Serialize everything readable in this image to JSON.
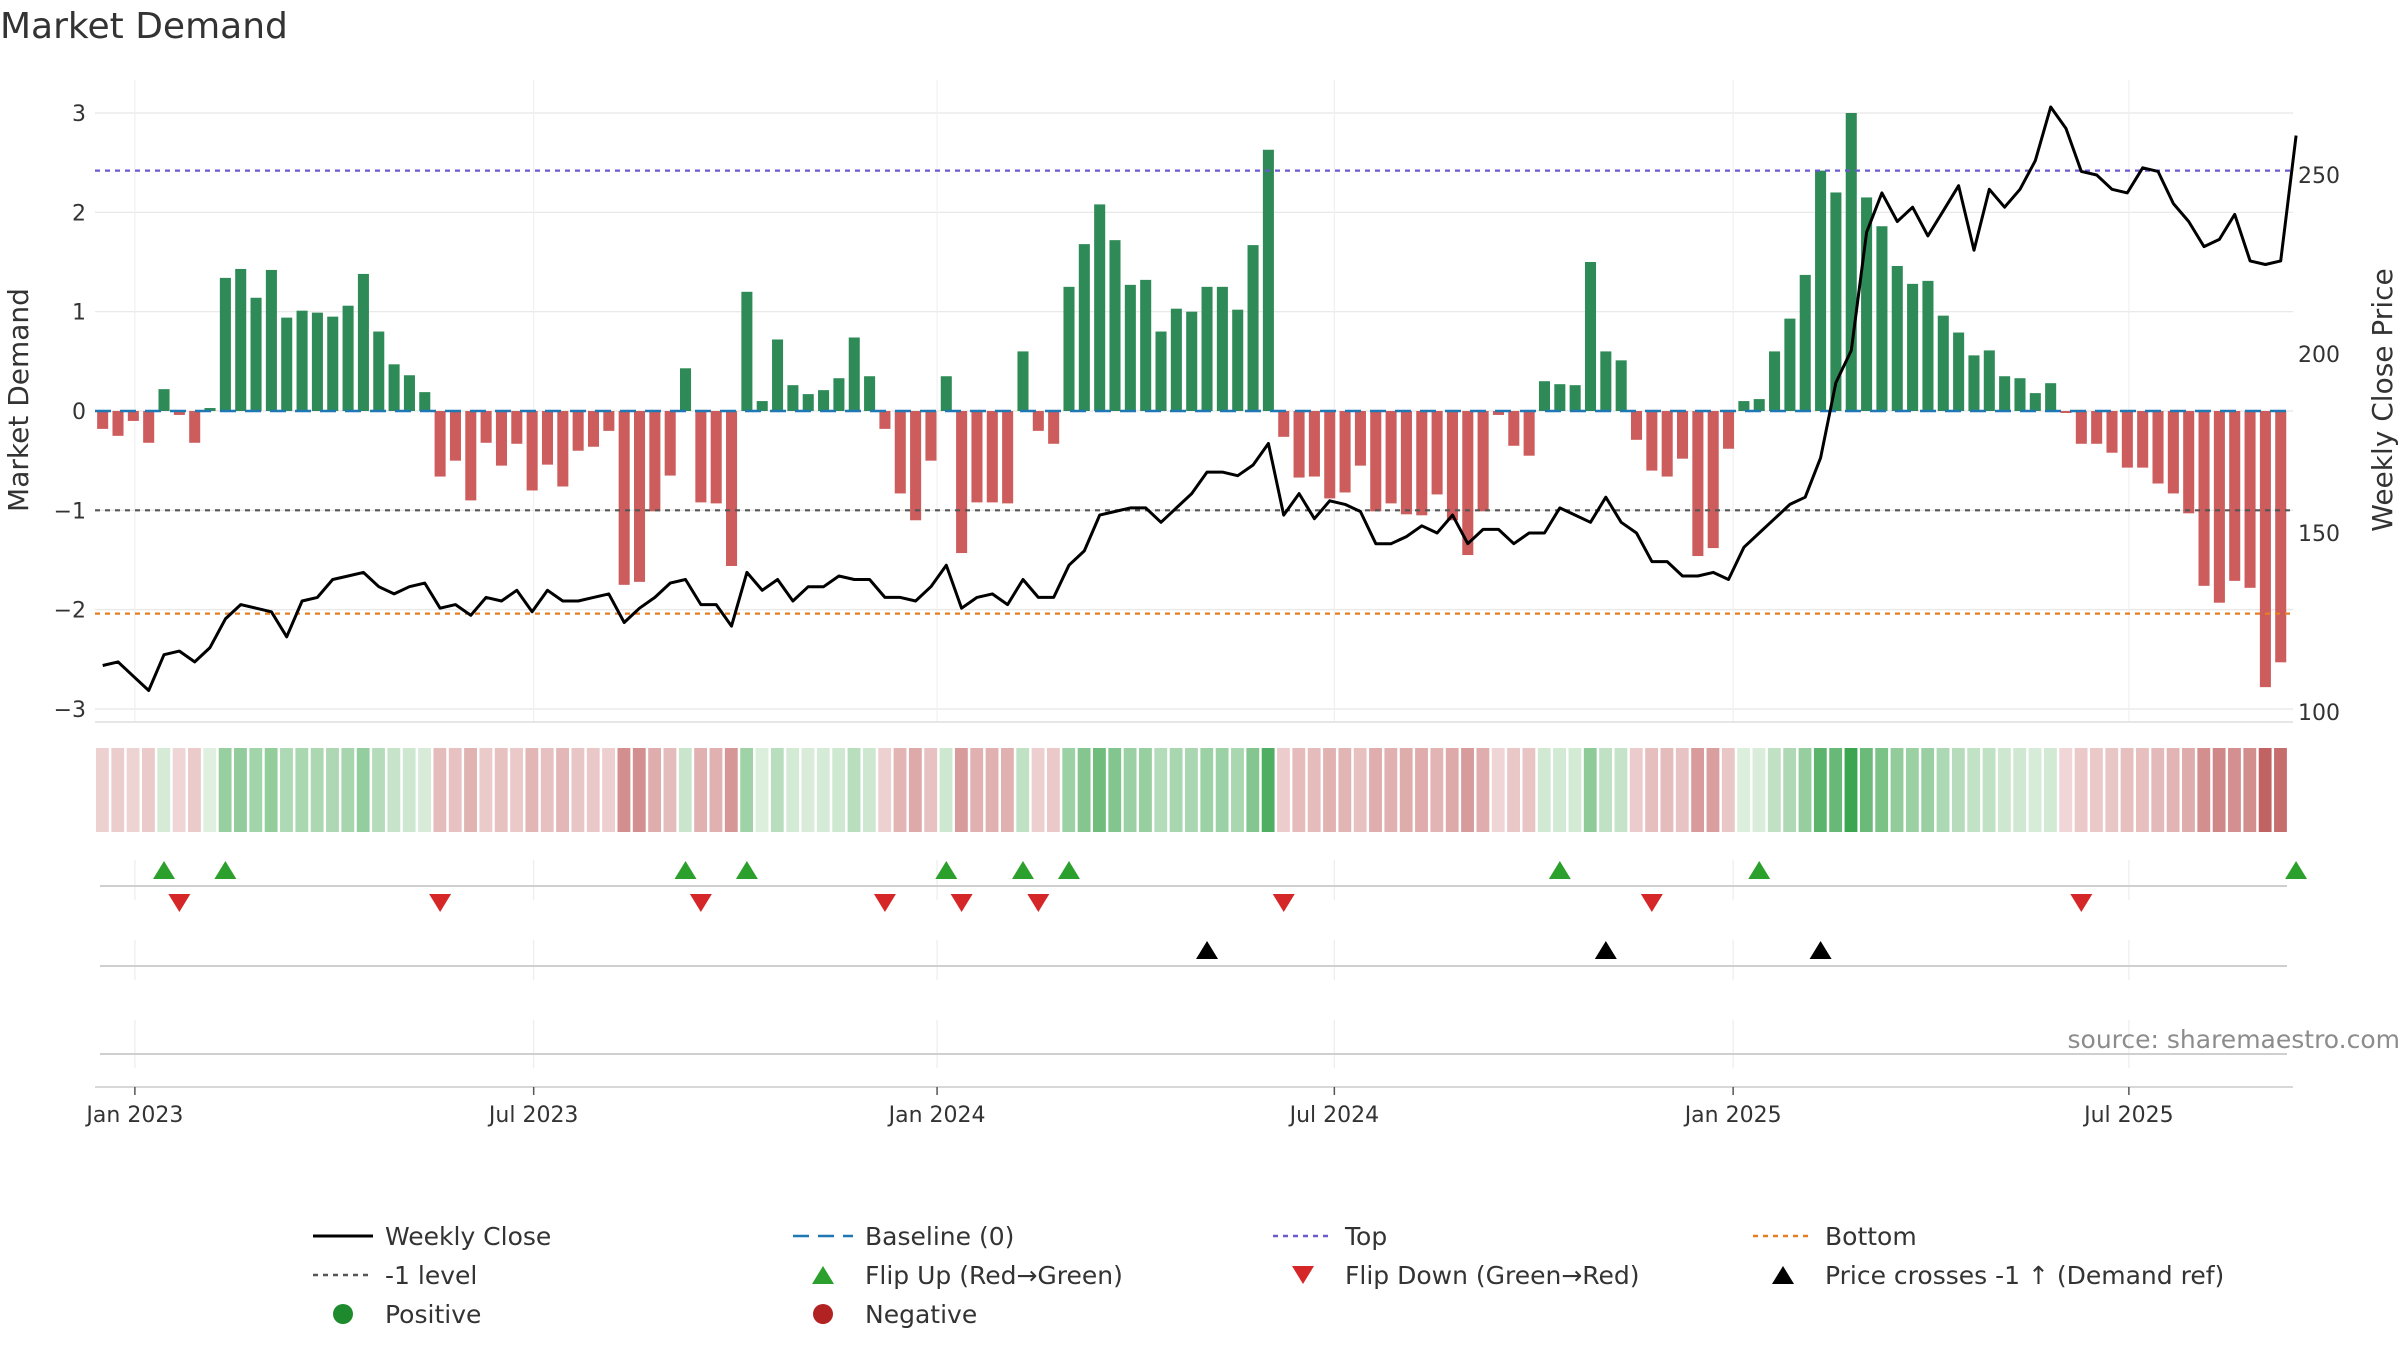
{
  "chart_data": {
    "type": "bar",
    "title": "Market Demand",
    "ylabel": "Market Demand",
    "y2label": "Weekly Close Price",
    "ylim": [
      -3.3,
      3.3
    ],
    "y2lim": [
      99.3,
      269
    ],
    "yticks": [
      3,
      2,
      1,
      0,
      -1,
      -2,
      -3
    ],
    "yticks_labels": [
      "3",
      "2",
      "1",
      "0",
      "−1",
      "−2",
      "−3"
    ],
    "y2ticks": [
      250,
      200,
      150,
      100
    ],
    "y2ticks_labels": [
      "250",
      "200",
      "150",
      "100"
    ],
    "x_domain_weeks": [
      0,
      143.3
    ],
    "x_tick_weeks": [
      2.6,
      28.6,
      54.9,
      80.8,
      106.8,
      132.6
    ],
    "x_tick_labels": [
      "Jan 2023",
      "Jul 2023",
      "Jan 2024",
      "Jul 2024",
      "Jan 2025",
      "Jul 2025"
    ],
    "reference_lines": {
      "top": 2.42,
      "bottom": -2.04,
      "minus_one": -1,
      "baseline": 0
    },
    "demand": [
      -0.18,
      -0.25,
      -0.1,
      -0.32,
      0.22,
      -0.04,
      -0.32,
      0.03,
      1.34,
      1.43,
      1.14,
      1.42,
      0.94,
      1.01,
      0.99,
      0.95,
      1.06,
      1.38,
      0.8,
      0.47,
      0.36,
      0.19,
      -0.66,
      -0.5,
      -0.9,
      -0.32,
      -0.55,
      -0.33,
      -0.8,
      -0.54,
      -0.76,
      -0.4,
      -0.36,
      -0.2,
      -1.75,
      -1.72,
      -1.01,
      -0.65,
      0.43,
      -0.92,
      -0.93,
      -1.56,
      1.2,
      0.1,
      0.72,
      0.26,
      0.17,
      0.21,
      0.33,
      0.74,
      0.35,
      -0.18,
      -0.83,
      -1.1,
      -0.5,
      0.35,
      -1.43,
      -0.92,
      -0.92,
      -0.93,
      0.6,
      -0.2,
      -0.33,
      1.25,
      1.68,
      2.08,
      1.72,
      1.27,
      1.32,
      0.8,
      1.03,
      1.0,
      1.25,
      1.25,
      1.02,
      1.67,
      2.63,
      -0.26,
      -0.67,
      -0.66,
      -0.88,
      -0.82,
      -0.55,
      -1.01,
      -0.93,
      -1.04,
      -1.05,
      -0.84,
      -1.1,
      -1.45,
      -1.01,
      -0.04,
      -0.35,
      -0.45,
      0.3,
      0.27,
      0.26,
      1.5,
      0.6,
      0.51,
      -0.29,
      -0.6,
      -0.66,
      -0.48,
      -1.46,
      -1.38,
      -0.38,
      0.1,
      0.12,
      0.6,
      0.93,
      1.37,
      2.42,
      2.2,
      3.0,
      2.15,
      1.86,
      1.46,
      1.28,
      1.31,
      0.96,
      0.79,
      0.56,
      0.61,
      0.35,
      0.33,
      0.18,
      0.28,
      -0.02,
      -0.33,
      -0.33,
      -0.42,
      -0.57,
      -0.57,
      -0.73,
      -0.83,
      -1.03,
      -1.76,
      -1.93,
      -1.71,
      -1.78,
      -2.78,
      -2.53
    ],
    "weekly_close": [
      113,
      114,
      110,
      106,
      116,
      117,
      114,
      118,
      126,
      130,
      129,
      128,
      121,
      131,
      132,
      137,
      138,
      139,
      135,
      133,
      135,
      136,
      129,
      130,
      127,
      132,
      131,
      134,
      128,
      134,
      131,
      131,
      132,
      133,
      125,
      129,
      132,
      136,
      137,
      130,
      130,
      124,
      139,
      134,
      137,
      131,
      135,
      135,
      138,
      137,
      137,
      132,
      132,
      131,
      135,
      141,
      129,
      132,
      133,
      130,
      137,
      132,
      132,
      141,
      145,
      155,
      156,
      157,
      157,
      153,
      157,
      161,
      167,
      167,
      166,
      169,
      175,
      155,
      161,
      154,
      159,
      158,
      156,
      147,
      147,
      149,
      152,
      150,
      155,
      147,
      151,
      151,
      147,
      150,
      150,
      157,
      155,
      153,
      160,
      153,
      150,
      142,
      142,
      138,
      138,
      139,
      137,
      146,
      150,
      154,
      158,
      160,
      171,
      192,
      201,
      234,
      245,
      237,
      241,
      233,
      240,
      247,
      229,
      246,
      241,
      246,
      254,
      269,
      263,
      251,
      250,
      246,
      245,
      252,
      251,
      242,
      237,
      230,
      232,
      239,
      226,
      225,
      226,
      261
    ],
    "flip_up_weeks": [
      4,
      8,
      38,
      42,
      55,
      60,
      63,
      95,
      108,
      143
    ],
    "flip_down_weeks": [
      5,
      22,
      39,
      51,
      56,
      61,
      77,
      101,
      129
    ],
    "price_cross_weeks": [
      72,
      98,
      112
    ],
    "legend": [
      {
        "label": "Weekly Close",
        "style": "line",
        "color": "#000000"
      },
      {
        "label": "Baseline (0)",
        "style": "dashed",
        "color": "#1f77b4"
      },
      {
        "label": "Top",
        "style": "dotted",
        "color": "#6a5acd"
      },
      {
        "label": "Bottom",
        "style": "dotted",
        "color": "#e67e22"
      },
      {
        "label": "-1 level",
        "style": "dotted",
        "color": "#555555"
      },
      {
        "label": "Flip Up (Red→Green)",
        "style": "tri-up",
        "color": "#2ca02c"
      },
      {
        "label": "Flip Down (Green→Red)",
        "style": "tri-down",
        "color": "#d62728"
      },
      {
        "label": "Price crosses -1 ↑ (Demand ref)",
        "style": "tri-up",
        "color": "#000000"
      },
      {
        "label": "Positive",
        "style": "dot",
        "color": "#1e8a2e"
      },
      {
        "label": "Negative",
        "style": "dot",
        "color": "#b22222"
      }
    ],
    "source": "source: sharemaestro.com"
  },
  "colors": {
    "positive_bar": "#2e8b57",
    "negative_bar": "#cd5c5c",
    "price_line": "#000000",
    "grid": "#e6e6e6"
  }
}
